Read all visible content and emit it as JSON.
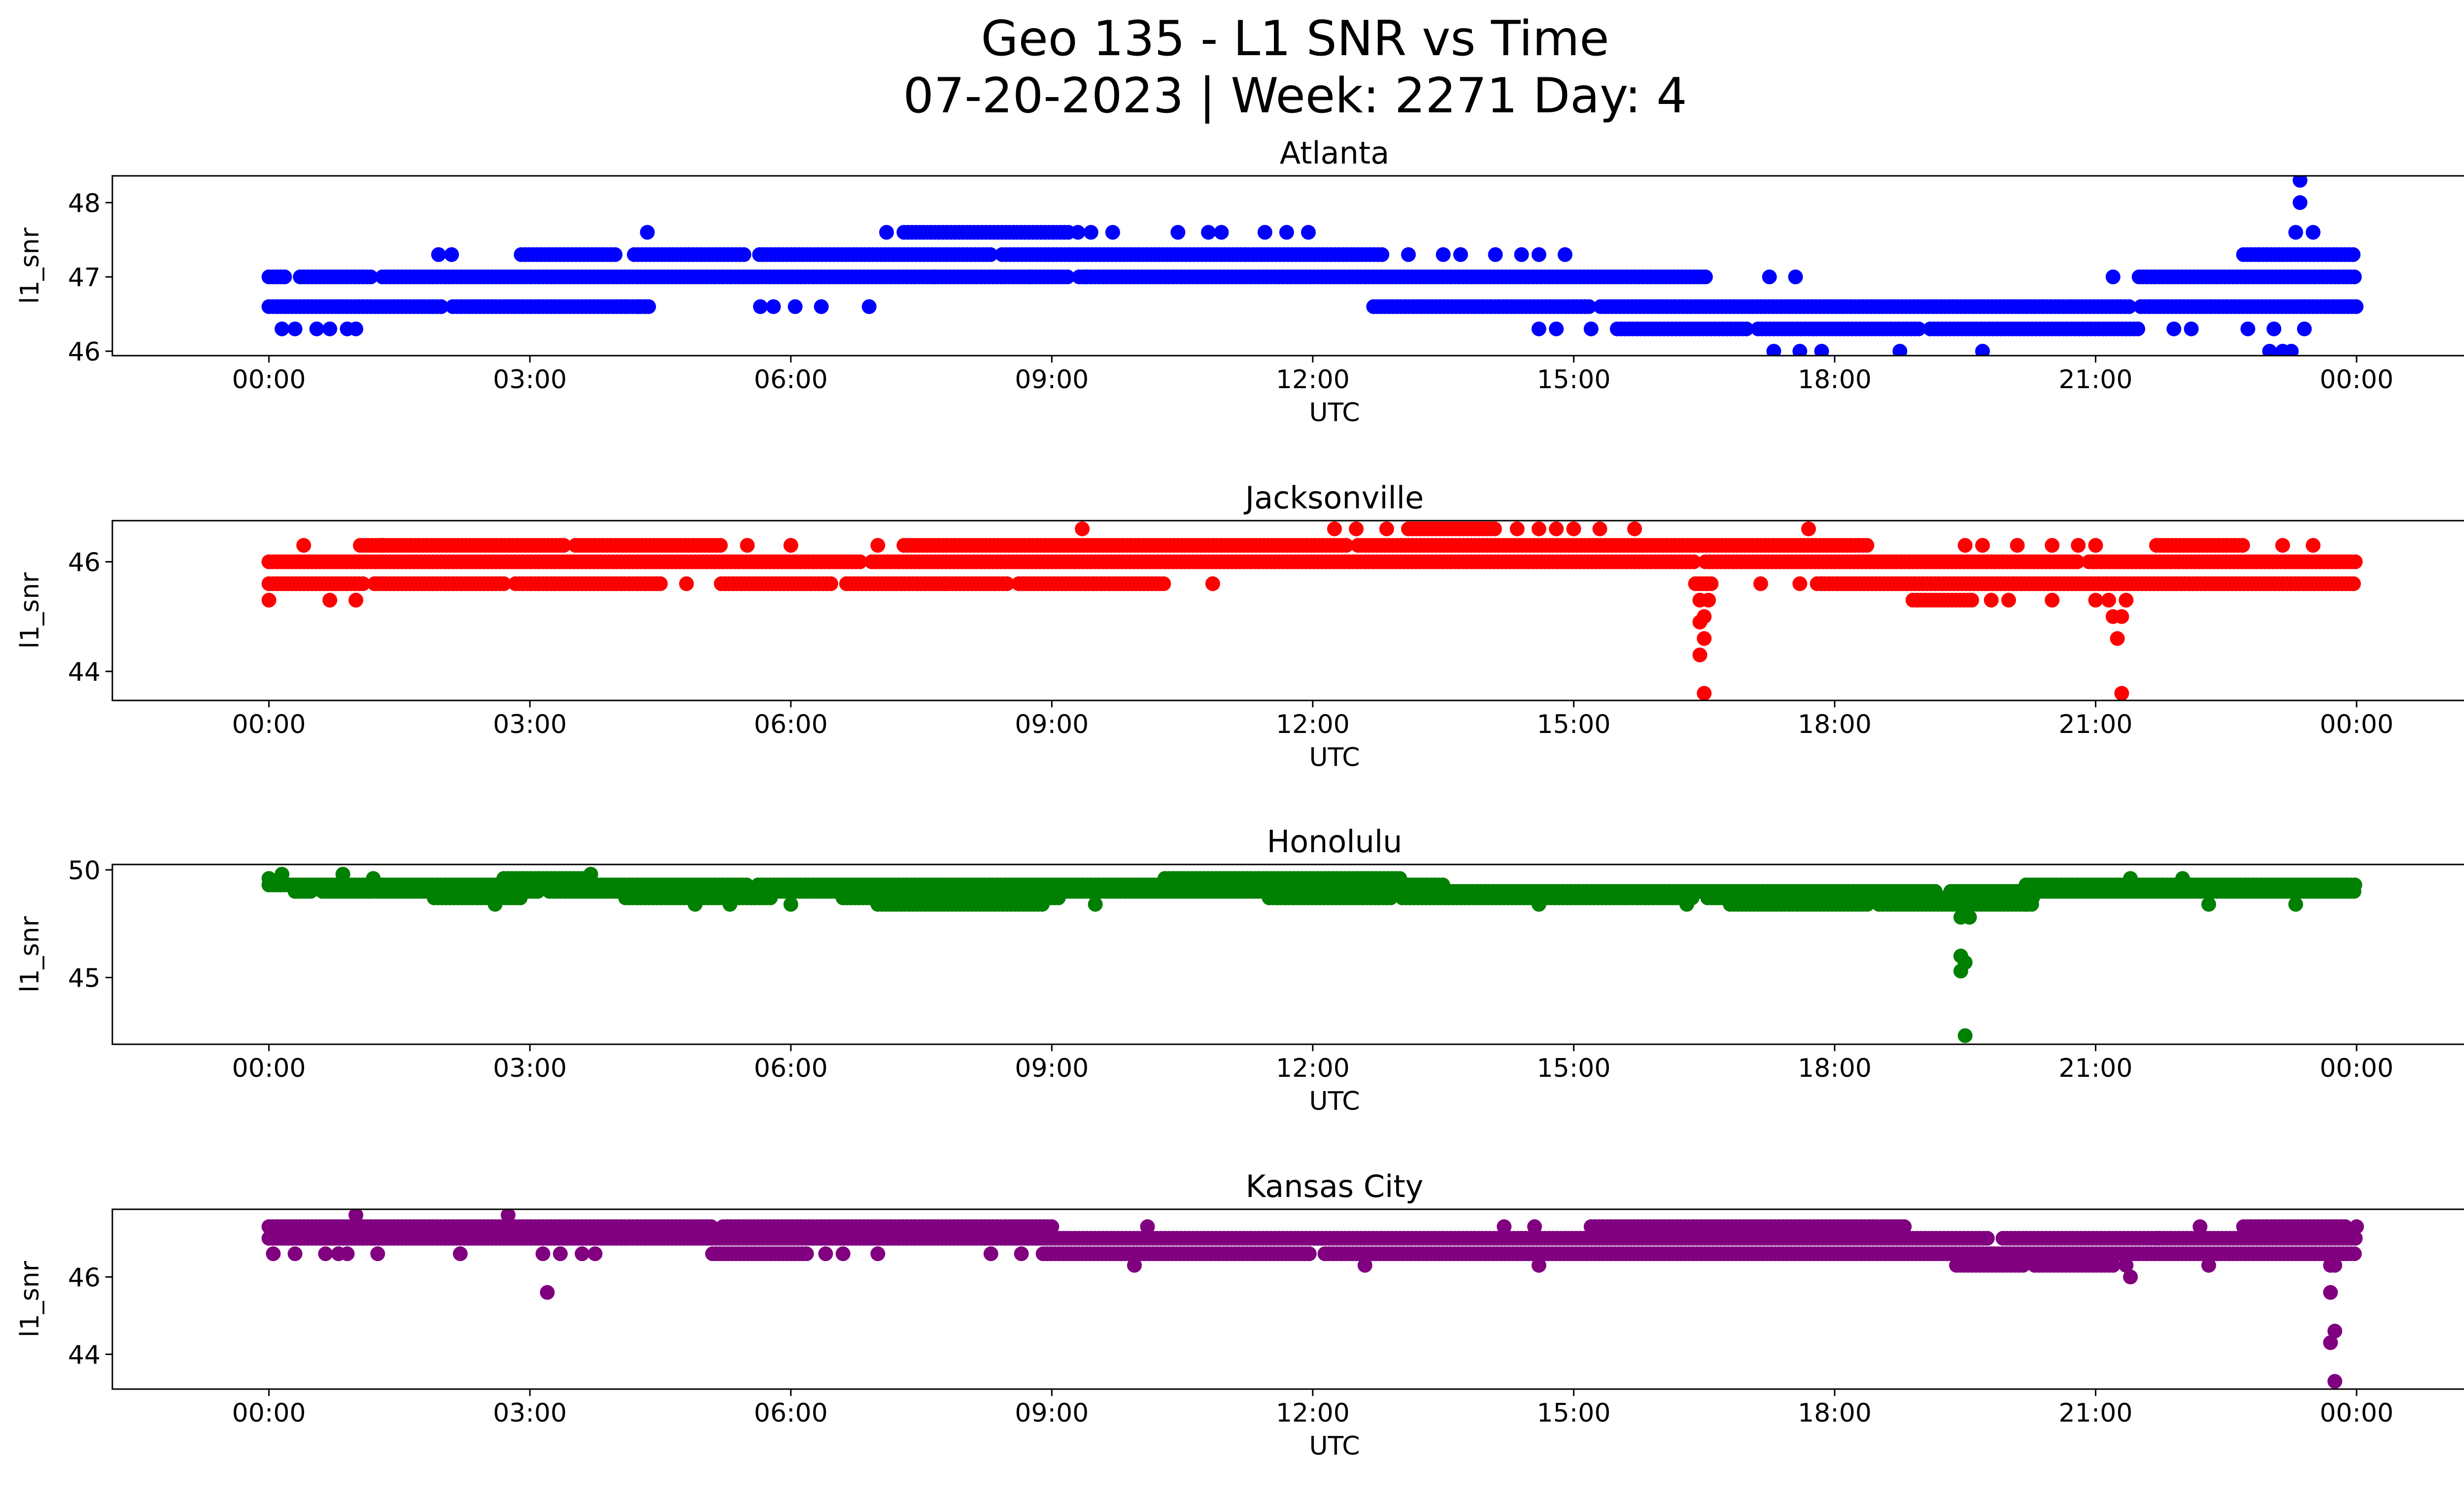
{
  "title_line1": "Geo 135 - L1 SNR vs Time",
  "title_line2": "07-20-2023 | Week: 2271 Day: 4",
  "chart_data": [
    {
      "type": "scatter",
      "title": "Atlanta",
      "xlabel": "UTC",
      "ylabel": "l1_snr",
      "color": "#0000ff",
      "xlim": [
        -1.8,
        26.3
      ],
      "ylim": [
        45.94,
        48.36
      ],
      "x_ticks": [
        "00:00",
        "03:00",
        "06:00",
        "09:00",
        "12:00",
        "15:00",
        "18:00",
        "21:00",
        "00:00"
      ],
      "y_ticks": [
        46,
        47,
        48
      ],
      "bands": [
        {
          "y": 47.0,
          "segments": [
            [
              0,
              16.55
            ],
            [
              21.5,
              24.0
            ]
          ],
          "gaps": [
            [
              0.2,
              0.35
            ],
            [
              1.2,
              1.3
            ],
            [
              9.2,
              9.3
            ],
            [
              17.7,
              17.8
            ],
            [
              20.7,
              20.8
            ]
          ]
        },
        {
          "y": 46.6,
          "segments": [
            [
              0,
              4.4
            ],
            [
              12.7,
              24.0
            ]
          ],
          "gaps": [
            [
              2.0,
              2.1
            ],
            [
              15.2,
              15.3
            ],
            [
              21.4,
              21.5
            ]
          ]
        },
        {
          "y": 47.3,
          "segments": [
            [
              2.9,
              4.0
            ],
            [
              4.2,
              12.8
            ],
            [
              22.7,
              24.0
            ]
          ],
          "gaps": [
            [
              5.5,
              5.6
            ],
            [
              8.3,
              8.4
            ]
          ]
        },
        {
          "y": 47.6,
          "segments": [
            [
              7.3,
              9.2
            ]
          ],
          "gaps": []
        },
        {
          "y": 46.3,
          "segments": [
            [
              15.5,
              21.5
            ]
          ],
          "gaps": [
            [
              17.0,
              17.1
            ],
            [
              19.0,
              19.1
            ]
          ]
        }
      ],
      "points": [
        {
          "x": 0.15,
          "y": 46.3
        },
        {
          "x": 0.3,
          "y": 46.3
        },
        {
          "x": 0.55,
          "y": 46.3
        },
        {
          "x": 0.7,
          "y": 46.3
        },
        {
          "x": 0.9,
          "y": 46.3
        },
        {
          "x": 1.0,
          "y": 46.3
        },
        {
          "x": 1.95,
          "y": 47.3
        },
        {
          "x": 2.1,
          "y": 47.3
        },
        {
          "x": 4.35,
          "y": 47.6
        },
        {
          "x": 4.1,
          "y": 46.6
        },
        {
          "x": 4.25,
          "y": 46.6
        },
        {
          "x": 5.65,
          "y": 46.6
        },
        {
          "x": 5.8,
          "y": 46.6
        },
        {
          "x": 6.05,
          "y": 46.6
        },
        {
          "x": 6.35,
          "y": 46.6
        },
        {
          "x": 6.9,
          "y": 46.6
        },
        {
          "x": 7.1,
          "y": 47.6
        },
        {
          "x": 7.65,
          "y": 47.0
        },
        {
          "x": 9.3,
          "y": 47.6
        },
        {
          "x": 9.45,
          "y": 47.6
        },
        {
          "x": 9.7,
          "y": 47.6
        },
        {
          "x": 8.75,
          "y": 47.0
        },
        {
          "x": 9.4,
          "y": 47.0
        },
        {
          "x": 10.45,
          "y": 47.6
        },
        {
          "x": 10.8,
          "y": 47.6
        },
        {
          "x": 10.95,
          "y": 47.6
        },
        {
          "x": 11.45,
          "y": 47.6
        },
        {
          "x": 11.7,
          "y": 47.6
        },
        {
          "x": 11.95,
          "y": 47.6
        },
        {
          "x": 13.5,
          "y": 47.3
        },
        {
          "x": 13.7,
          "y": 47.3
        },
        {
          "x": 14.1,
          "y": 47.3
        },
        {
          "x": 14.4,
          "y": 47.3
        },
        {
          "x": 14.6,
          "y": 47.3
        },
        {
          "x": 14.9,
          "y": 47.3
        },
        {
          "x": 13.1,
          "y": 47.3
        },
        {
          "x": 14.6,
          "y": 46.3
        },
        {
          "x": 14.8,
          "y": 46.3
        },
        {
          "x": 15.2,
          "y": 46.3
        },
        {
          "x": 17.3,
          "y": 46.0
        },
        {
          "x": 17.6,
          "y": 46.0
        },
        {
          "x": 17.85,
          "y": 46.0
        },
        {
          "x": 18.75,
          "y": 46.0
        },
        {
          "x": 19.7,
          "y": 46.0
        },
        {
          "x": 17.25,
          "y": 47.0
        },
        {
          "x": 17.55,
          "y": 47.0
        },
        {
          "x": 21.2,
          "y": 47.0
        },
        {
          "x": 21.9,
          "y": 46.3
        },
        {
          "x": 22.1,
          "y": 46.3
        },
        {
          "x": 22.75,
          "y": 46.3
        },
        {
          "x": 23.05,
          "y": 46.3
        },
        {
          "x": 23.4,
          "y": 46.3
        },
        {
          "x": 23.0,
          "y": 46.0
        },
        {
          "x": 23.15,
          "y": 46.0
        },
        {
          "x": 23.25,
          "y": 46.0
        },
        {
          "x": 23.35,
          "y": 48.0
        },
        {
          "x": 23.35,
          "y": 48.3
        },
        {
          "x": 23.3,
          "y": 47.6
        },
        {
          "x": 23.5,
          "y": 47.6
        }
      ]
    },
    {
      "type": "scatter",
      "title": "Jacksonville",
      "xlabel": "UTC",
      "ylabel": "l1_snr",
      "color": "#ff0000",
      "xlim": [
        -1.8,
        26.3
      ],
      "ylim": [
        43.47,
        46.75
      ],
      "x_ticks": [
        "00:00",
        "03:00",
        "06:00",
        "09:00",
        "12:00",
        "15:00",
        "18:00",
        "21:00",
        "00:00"
      ],
      "y_ticks": [
        44,
        46
      ],
      "bands": [
        {
          "y": 46.0,
          "segments": [
            [
              0,
              24.0
            ]
          ],
          "gaps": [
            [
              6.8,
              6.9
            ],
            [
              16.4,
              16.5
            ],
            [
              20.8,
              20.9
            ]
          ]
        },
        {
          "y": 45.6,
          "segments": [
            [
              0,
              4.5
            ],
            [
              5.2,
              10.3
            ],
            [
              16.4,
              16.6
            ],
            [
              17.8,
              24.0
            ]
          ],
          "gaps": [
            [
              1.1,
              1.2
            ],
            [
              2.7,
              2.8
            ],
            [
              6.5,
              6.6
            ],
            [
              8.5,
              8.6
            ]
          ]
        },
        {
          "y": 46.3,
          "segments": [
            [
              1.05,
              5.2
            ],
            [
              7.3,
              18.4
            ],
            [
              21.7,
              22.7
            ]
          ],
          "gaps": [
            [
              3.4,
              3.5
            ],
            [
              12.4,
              12.5
            ]
          ]
        },
        {
          "y": 46.6,
          "segments": [
            [
              13.1,
              14.1
            ]
          ],
          "gaps": []
        },
        {
          "y": 45.3,
          "segments": [
            [
              18.9,
              19.6
            ]
          ],
          "gaps": []
        }
      ],
      "points": [
        {
          "x": 0.0,
          "y": 45.3
        },
        {
          "x": 0.7,
          "y": 45.3
        },
        {
          "x": 1.0,
          "y": 45.3
        },
        {
          "x": 0.4,
          "y": 46.3
        },
        {
          "x": 1.3,
          "y": 46.3
        },
        {
          "x": 5.5,
          "y": 46.3
        },
        {
          "x": 6.0,
          "y": 46.3
        },
        {
          "x": 7.0,
          "y": 46.3
        },
        {
          "x": 4.8,
          "y": 45.6
        },
        {
          "x": 7.8,
          "y": 45.6
        },
        {
          "x": 10.85,
          "y": 45.6
        },
        {
          "x": 9.35,
          "y": 46.6
        },
        {
          "x": 12.25,
          "y": 46.6
        },
        {
          "x": 12.5,
          "y": 46.6
        },
        {
          "x": 12.85,
          "y": 46.6
        },
        {
          "x": 14.35,
          "y": 46.6
        },
        {
          "x": 14.6,
          "y": 46.6
        },
        {
          "x": 14.8,
          "y": 46.6
        },
        {
          "x": 15.0,
          "y": 46.6
        },
        {
          "x": 15.3,
          "y": 46.6
        },
        {
          "x": 15.7,
          "y": 46.6
        },
        {
          "x": 16.45,
          "y": 45.3
        },
        {
          "x": 16.55,
          "y": 45.3
        },
        {
          "x": 16.5,
          "y": 45.0
        },
        {
          "x": 16.45,
          "y": 44.9
        },
        {
          "x": 16.5,
          "y": 44.6
        },
        {
          "x": 16.45,
          "y": 44.3
        },
        {
          "x": 16.5,
          "y": 43.6
        },
        {
          "x": 17.15,
          "y": 45.6
        },
        {
          "x": 17.6,
          "y": 45.6
        },
        {
          "x": 17.7,
          "y": 46.6
        },
        {
          "x": 19.8,
          "y": 45.3
        },
        {
          "x": 20.0,
          "y": 45.3
        },
        {
          "x": 20.5,
          "y": 45.3
        },
        {
          "x": 19.5,
          "y": 46.3
        },
        {
          "x": 19.7,
          "y": 46.3
        },
        {
          "x": 20.1,
          "y": 46.3
        },
        {
          "x": 20.5,
          "y": 46.3
        },
        {
          "x": 20.8,
          "y": 46.3
        },
        {
          "x": 21.0,
          "y": 46.3
        },
        {
          "x": 21.0,
          "y": 45.3
        },
        {
          "x": 21.15,
          "y": 45.3
        },
        {
          "x": 21.35,
          "y": 45.3
        },
        {
          "x": 21.2,
          "y": 45.0
        },
        {
          "x": 21.3,
          "y": 45.0
        },
        {
          "x": 21.25,
          "y": 44.6
        },
        {
          "x": 21.3,
          "y": 43.6
        },
        {
          "x": 23.15,
          "y": 46.3
        },
        {
          "x": 23.5,
          "y": 46.3
        }
      ]
    },
    {
      "type": "scatter",
      "title": "Honolulu",
      "xlabel": "UTC",
      "ylabel": "l1_snr",
      "color": "#008000",
      "xlim": [
        -1.8,
        26.3
      ],
      "ylim": [
        41.9,
        50.25
      ],
      "x_ticks": [
        "00:00",
        "03:00",
        "06:00",
        "09:00",
        "12:00",
        "15:00",
        "18:00",
        "21:00",
        "00:00"
      ],
      "y_ticks": [
        45,
        50
      ],
      "bands": [
        {
          "y": 49.3,
          "segments": [
            [
              0,
              11.0
            ],
            [
              13.0,
              13.5
            ],
            [
              20.2,
              24.0
            ]
          ],
          "gaps": [
            [
              2.7,
              2.8
            ],
            [
              5.5,
              5.6
            ]
          ]
        },
        {
          "y": 49.0,
          "segments": [
            [
              0.3,
              24.0
            ]
          ],
          "gaps": [
            [
              0.5,
              0.6
            ],
            [
              3.1,
              3.2
            ],
            [
              19.2,
              19.3
            ]
          ]
        },
        {
          "y": 48.7,
          "segments": [
            [
              1.9,
              2.9
            ],
            [
              4.1,
              5.8
            ],
            [
              6.6,
              9.1
            ],
            [
              11.5,
              20.3
            ]
          ],
          "gaps": [
            [
              10.1,
              10.2
            ],
            [
              12.9,
              13.0
            ],
            [
              16.4,
              16.5
            ]
          ]
        },
        {
          "y": 49.6,
          "segments": [
            [
              2.7,
              3.6
            ],
            [
              10.3,
              13.0
            ]
          ],
          "gaps": []
        },
        {
          "y": 48.4,
          "segments": [
            [
              7.0,
              8.9
            ],
            [
              16.8,
              20.3
            ]
          ],
          "gaps": [
            [
              18.4,
              18.5
            ]
          ]
        }
      ],
      "points": [
        {
          "x": 0.15,
          "y": 49.8
        },
        {
          "x": 0.85,
          "y": 49.8
        },
        {
          "x": 3.7,
          "y": 49.8
        },
        {
          "x": 0.0,
          "y": 49.6
        },
        {
          "x": 1.2,
          "y": 49.6
        },
        {
          "x": 2.6,
          "y": 48.4
        },
        {
          "x": 4.9,
          "y": 48.4
        },
        {
          "x": 5.3,
          "y": 48.4
        },
        {
          "x": 6.0,
          "y": 48.4
        },
        {
          "x": 9.5,
          "y": 48.4
        },
        {
          "x": 14.6,
          "y": 48.4
        },
        {
          "x": 16.3,
          "y": 48.4
        },
        {
          "x": 19.5,
          "y": 48.1
        },
        {
          "x": 19.45,
          "y": 47.8
        },
        {
          "x": 19.55,
          "y": 47.8
        },
        {
          "x": 19.45,
          "y": 46.0
        },
        {
          "x": 19.5,
          "y": 45.7
        },
        {
          "x": 19.45,
          "y": 45.3
        },
        {
          "x": 19.5,
          "y": 42.3
        },
        {
          "x": 20.2,
          "y": 48.4
        },
        {
          "x": 21.4,
          "y": 49.6
        },
        {
          "x": 22.0,
          "y": 49.6
        },
        {
          "x": 22.3,
          "y": 48.4
        },
        {
          "x": 23.3,
          "y": 48.4
        }
      ]
    },
    {
      "type": "scatter",
      "title": "Kansas City",
      "xlabel": "UTC",
      "ylabel": "l1_snr",
      "color": "#800080",
      "xlim": [
        -1.8,
        26.3
      ],
      "ylim": [
        43.1,
        47.75
      ],
      "x_ticks": [
        "00:00",
        "03:00",
        "06:00",
        "09:00",
        "12:00",
        "15:00",
        "18:00",
        "21:00",
        "00:00"
      ],
      "y_ticks": [
        44,
        46
      ],
      "bands": [
        {
          "y": 47.3,
          "segments": [
            [
              0,
              9.0
            ],
            [
              15.2,
              18.8
            ],
            [
              22.7,
              23.9
            ]
          ],
          "gaps": [
            [
              5.1,
              5.2
            ]
          ]
        },
        {
          "y": 47.0,
          "segments": [
            [
              0,
              24.0
            ]
          ],
          "gaps": [
            [
              19.8,
              19.9
            ]
          ]
        },
        {
          "y": 46.6,
          "segments": [
            [
              5.1,
              6.2
            ],
            [
              8.9,
              24.0
            ]
          ],
          "gaps": [
            [
              12.0,
              12.1
            ]
          ]
        },
        {
          "y": 46.3,
          "segments": [
            [
              19.4,
              21.2
            ]
          ],
          "gaps": [
            [
              20.2,
              20.3
            ]
          ]
        }
      ],
      "points": [
        {
          "x": 0.05,
          "y": 46.6
        },
        {
          "x": 0.3,
          "y": 46.6
        },
        {
          "x": 0.65,
          "y": 46.6
        },
        {
          "x": 0.8,
          "y": 46.6
        },
        {
          "x": 0.9,
          "y": 46.6
        },
        {
          "x": 1.25,
          "y": 46.6
        },
        {
          "x": 1.0,
          "y": 47.6
        },
        {
          "x": 2.2,
          "y": 46.6
        },
        {
          "x": 2.75,
          "y": 47.6
        },
        {
          "x": 3.15,
          "y": 46.6
        },
        {
          "x": 3.35,
          "y": 46.6
        },
        {
          "x": 3.2,
          "y": 45.6
        },
        {
          "x": 3.6,
          "y": 46.6
        },
        {
          "x": 3.75,
          "y": 46.6
        },
        {
          "x": 6.4,
          "y": 46.6
        },
        {
          "x": 6.6,
          "y": 46.6
        },
        {
          "x": 7.0,
          "y": 46.6
        },
        {
          "x": 8.3,
          "y": 46.6
        },
        {
          "x": 8.65,
          "y": 46.6
        },
        {
          "x": 9.95,
          "y": 46.3
        },
        {
          "x": 10.1,
          "y": 47.3
        },
        {
          "x": 12.6,
          "y": 46.3
        },
        {
          "x": 14.2,
          "y": 47.3
        },
        {
          "x": 14.55,
          "y": 47.3
        },
        {
          "x": 14.6,
          "y": 46.3
        },
        {
          "x": 21.4,
          "y": 46.0
        },
        {
          "x": 21.35,
          "y": 46.3
        },
        {
          "x": 21.7,
          "y": 47.0
        },
        {
          "x": 22.2,
          "y": 47.3
        },
        {
          "x": 22.3,
          "y": 46.3
        },
        {
          "x": 23.7,
          "y": 46.3
        },
        {
          "x": 23.75,
          "y": 46.3
        },
        {
          "x": 23.7,
          "y": 45.6
        },
        {
          "x": 23.75,
          "y": 44.6
        },
        {
          "x": 23.7,
          "y": 44.3
        },
        {
          "x": 23.75,
          "y": 43.3
        },
        {
          "x": 24.0,
          "y": 47.3
        }
      ]
    }
  ]
}
